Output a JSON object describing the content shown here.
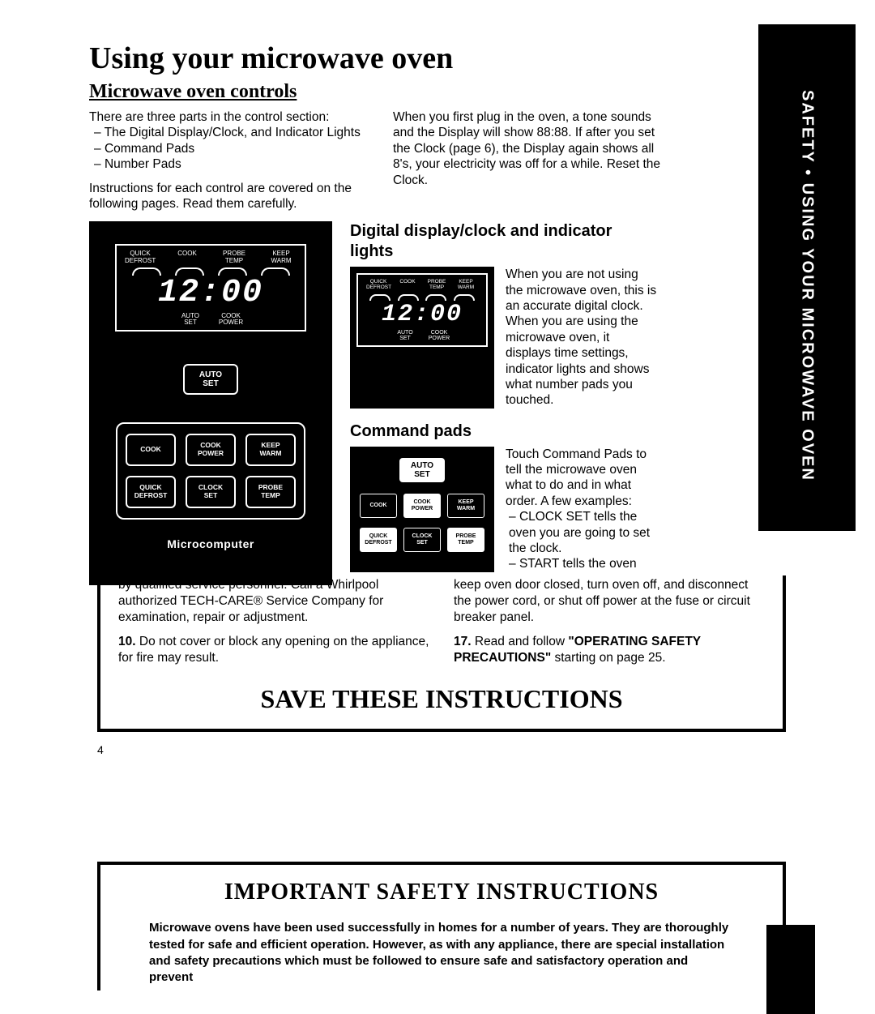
{
  "side_tab": "SAFETY • USING YOUR MICROWAVE OVEN",
  "main_title": "Using your microwave oven",
  "sub_title": "Microwave oven controls",
  "intro": {
    "left": {
      "line1": "There are three parts in the control section:",
      "items": [
        "The Digital Display/Clock, and Indicator Lights",
        "Command Pads",
        "Number Pads"
      ],
      "line2": "Instructions for each control are covered on the following pages. Read them carefully."
    },
    "right": "When you first plug in the oven, a tone sounds and the Display will show 88:88. If after you set the Clock (page 6), the Display again shows all 8's, your electricity was off for a while. Reset the Clock."
  },
  "display": {
    "indicators_top": [
      "QUICK\nDEFROST",
      "COOK",
      "PROBE\nTEMP",
      "KEEP\nWARM"
    ],
    "time": "12:00",
    "indicators_bottom": [
      "AUTO\nSET",
      "COOK\nPOWER"
    ]
  },
  "auto_set": {
    "l1": "AUTO",
    "l2": "SET"
  },
  "pads": [
    {
      "l1": "COOK",
      "l2": ""
    },
    {
      "l1": "COOK",
      "l2": "POWER"
    },
    {
      "l1": "KEEP",
      "l2": "WARM"
    },
    {
      "l1": "QUICK",
      "l2": "DEFROST"
    },
    {
      "l1": "CLOCK",
      "l2": "SET"
    },
    {
      "l1": "PROBE",
      "l2": "TEMP"
    }
  ],
  "microcomputer": "Microcomputer",
  "section_display": {
    "title": "Digital display/clock and indicator lights",
    "text": "When you are not using the microwave oven, this is an accurate digital clock. When you are using the microwave oven, it displays time settings, indicator lights and shows what number pads you touched."
  },
  "section_cmd": {
    "title": "Command pads",
    "text": "Touch Command Pads to tell the microwave oven what to do and in what order. A few examples:",
    "items": [
      "CLOCK SET tells the oven you are going to set the clock.",
      "START tells the oven"
    ]
  },
  "lower": {
    "left": {
      "frag1": "by qualified service personnel. Call a Whirlpool authorized TECH-CARE® Service Company for examination, repair or adjustment.",
      "num10": "10.",
      "t10": " Do not cover or block any opening on the appliance, for fire may result."
    },
    "right": {
      "frag2": "keep oven door closed, turn oven off, and disconnect the power cord, or shut off power at the fuse or circuit breaker panel.",
      "num17": "17.",
      "t17a": " Read and follow ",
      "bold17": "\"OPERATING SAFETY PRECAUTIONS\"",
      "t17b": " starting on page 25."
    },
    "save": "SAVE THESE INSTRUCTIONS"
  },
  "page_num": "4",
  "safety": {
    "title": "IMPORTANT SAFETY INSTRUCTIONS",
    "body": "Microwave ovens have been used successfully in homes for a number of years. They are thoroughly tested for safe and efficient operation. However, as with any appliance, there are special installation and safety precautions which must be followed to ensure safe and satisfactory operation and prevent"
  }
}
